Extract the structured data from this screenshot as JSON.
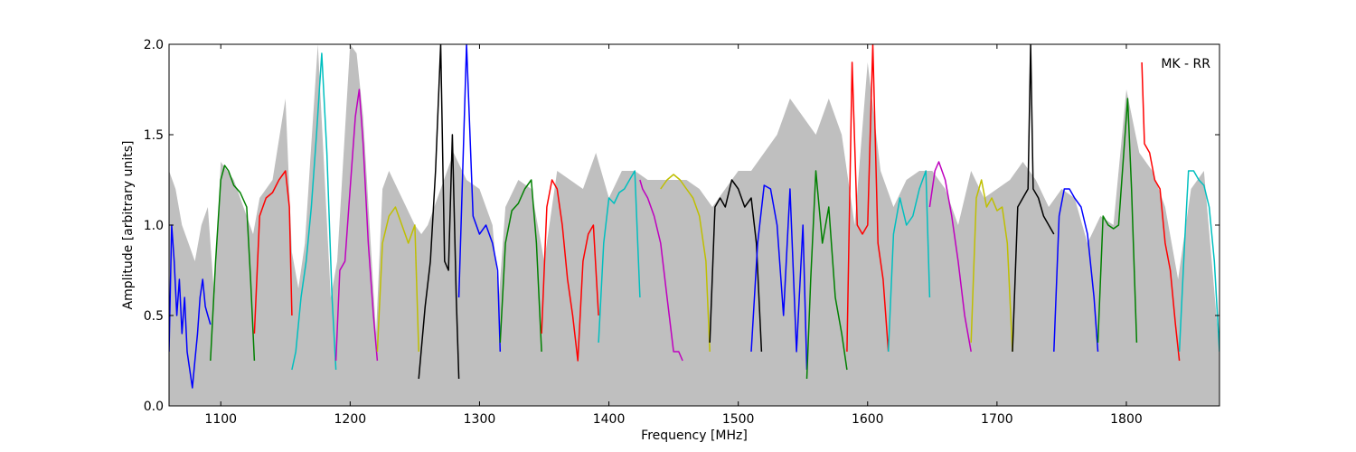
{
  "chart_data": {
    "type": "line",
    "title": "",
    "xlabel": "Frequency [MHz]",
    "ylabel": "Amplitude [arbitrary units]",
    "xlim": [
      1060,
      1872
    ],
    "ylim": [
      0.0,
      2.0
    ],
    "xticks": [
      1100,
      1200,
      1300,
      1400,
      1500,
      1600,
      1700,
      1800
    ],
    "xtick_labels": [
      "1100",
      "1200",
      "1300",
      "1400",
      "1500",
      "1600",
      "1700",
      "1800"
    ],
    "yticks": [
      0.0,
      0.5,
      1.0,
      1.5,
      2.0
    ],
    "ytick_labels": [
      "0.0",
      "0.5",
      "1.0",
      "1.5",
      "2.0"
    ],
    "grid": false,
    "legend": {
      "text": "MK - RR",
      "placement": "top-right"
    },
    "band_envelope": {
      "color": "#bfbfbf",
      "x": [
        1060,
        1065,
        1070,
        1075,
        1080,
        1085,
        1090,
        1095,
        1100,
        1110,
        1125,
        1130,
        1140,
        1150,
        1155,
        1160,
        1165,
        1170,
        1175,
        1185,
        1190,
        1200,
        1205,
        1210,
        1220,
        1225,
        1230,
        1240,
        1250,
        1255,
        1260,
        1270,
        1280,
        1290,
        1300,
        1310,
        1315,
        1320,
        1330,
        1340,
        1350,
        1360,
        1370,
        1380,
        1390,
        1400,
        1410,
        1420,
        1430,
        1440,
        1450,
        1460,
        1470,
        1480,
        1490,
        1500,
        1510,
        1520,
        1530,
        1540,
        1550,
        1560,
        1570,
        1580,
        1590,
        1600,
        1610,
        1620,
        1630,
        1640,
        1650,
        1660,
        1670,
        1680,
        1690,
        1700,
        1710,
        1720,
        1730,
        1740,
        1750,
        1760,
        1770,
        1780,
        1790,
        1800,
        1810,
        1820,
        1830,
        1840,
        1850,
        1860,
        1872
      ],
      "upper": [
        1.3,
        1.2,
        1.0,
        0.9,
        0.8,
        1.0,
        1.1,
        0.6,
        1.35,
        1.25,
        0.95,
        1.15,
        1.25,
        1.7,
        0.85,
        0.65,
        0.9,
        1.45,
        2.0,
        0.6,
        0.8,
        2.0,
        1.95,
        1.6,
        0.4,
        1.2,
        1.3,
        1.15,
        1.0,
        0.95,
        1.0,
        1.2,
        1.4,
        1.25,
        1.2,
        1.0,
        0.6,
        1.1,
        1.25,
        1.2,
        0.8,
        1.3,
        1.25,
        1.2,
        1.4,
        1.15,
        1.3,
        1.3,
        1.25,
        1.25,
        1.25,
        1.25,
        1.2,
        1.1,
        1.2,
        1.3,
        1.3,
        1.4,
        1.5,
        1.7,
        1.6,
        1.5,
        1.7,
        1.5,
        1.0,
        1.9,
        1.3,
        1.1,
        1.25,
        1.3,
        1.3,
        1.2,
        1.0,
        1.3,
        1.15,
        1.2,
        1.25,
        1.35,
        1.25,
        1.1,
        1.2,
        1.15,
        0.9,
        1.05,
        1.0,
        1.75,
        1.4,
        1.3,
        1.1,
        0.7,
        1.2,
        1.3,
        0.3
      ]
    },
    "series": [
      {
        "color": "#0000ff",
        "x": [
          1060,
          1062,
          1064,
          1066,
          1068,
          1070,
          1072,
          1074,
          1076,
          1078,
          1080,
          1082,
          1084,
          1086,
          1088,
          1090,
          1092
        ],
        "y": [
          0.3,
          1.0,
          0.8,
          0.5,
          0.7,
          0.4,
          0.6,
          0.3,
          0.2,
          0.1,
          0.25,
          0.4,
          0.6,
          0.7,
          0.55,
          0.5,
          0.45
        ]
      },
      {
        "color": "#008000",
        "x": [
          1092,
          1096,
          1100,
          1103,
          1106,
          1110,
          1115,
          1120,
          1123,
          1126
        ],
        "y": [
          0.25,
          0.8,
          1.25,
          1.33,
          1.3,
          1.22,
          1.18,
          1.1,
          0.7,
          0.25
        ]
      },
      {
        "color": "#ff0000",
        "x": [
          1126,
          1130,
          1135,
          1140,
          1145,
          1150,
          1153,
          1155
        ],
        "y": [
          0.4,
          1.05,
          1.15,
          1.18,
          1.25,
          1.3,
          1.1,
          0.5
        ]
      },
      {
        "color": "#00bfbf",
        "x": [
          1155,
          1158,
          1162,
          1166,
          1170,
          1174,
          1178,
          1182,
          1186,
          1189
        ],
        "y": [
          0.2,
          0.3,
          0.6,
          0.8,
          1.1,
          1.5,
          1.95,
          1.4,
          0.6,
          0.2
        ]
      },
      {
        "color": "#bf00bf",
        "x": [
          1189,
          1192,
          1196,
          1200,
          1204,
          1207,
          1210,
          1214,
          1218,
          1221
        ],
        "y": [
          0.25,
          0.75,
          0.8,
          1.2,
          1.6,
          1.75,
          1.45,
          0.9,
          0.5,
          0.25
        ]
      },
      {
        "color": "#bfbf00",
        "x": [
          1221,
          1225,
          1230,
          1235,
          1240,
          1245,
          1250,
          1253
        ],
        "y": [
          0.3,
          0.9,
          1.05,
          1.1,
          1.0,
          0.9,
          1.0,
          0.3
        ]
      },
      {
        "color": "#000000",
        "x": [
          1253,
          1258,
          1262,
          1266,
          1270,
          1273,
          1276,
          1279,
          1282,
          1284
        ],
        "y": [
          0.15,
          0.55,
          0.8,
          1.3,
          2.0,
          0.8,
          0.75,
          1.5,
          0.6,
          0.15
        ]
      },
      {
        "color": "#0000ff",
        "x": [
          1284,
          1290,
          1295,
          1300,
          1305,
          1310,
          1314,
          1316
        ],
        "y": [
          0.6,
          2.0,
          1.05,
          0.95,
          1.0,
          0.9,
          0.75,
          0.3
        ]
      },
      {
        "color": "#008000",
        "x": [
          1316,
          1320,
          1325,
          1330,
          1335,
          1340,
          1344,
          1348
        ],
        "y": [
          0.35,
          0.9,
          1.08,
          1.12,
          1.2,
          1.25,
          0.9,
          0.3
        ]
      },
      {
        "color": "#ff0000",
        "x": [
          1348,
          1352,
          1356,
          1360,
          1364,
          1368,
          1372,
          1376,
          1380,
          1384,
          1388,
          1392
        ],
        "y": [
          0.4,
          1.1,
          1.25,
          1.2,
          1.0,
          0.7,
          0.5,
          0.25,
          0.8,
          0.95,
          1.0,
          0.5
        ]
      },
      {
        "color": "#00bfbf",
        "x": [
          1392,
          1396,
          1400,
          1404,
          1408,
          1412,
          1416,
          1420,
          1424
        ],
        "y": [
          0.35,
          0.9,
          1.15,
          1.12,
          1.18,
          1.2,
          1.25,
          1.3,
          0.6
        ]
      },
      {
        "color": "#bf00bf",
        "x": [
          1424,
          1426,
          1430,
          1435,
          1440,
          1445,
          1450,
          1454,
          1457
        ],
        "y": [
          1.25,
          1.2,
          1.15,
          1.05,
          0.9,
          0.6,
          0.3,
          0.3,
          0.25
        ]
      },
      {
        "color": "#bfbf00",
        "x": [
          1440,
          1445,
          1450,
          1455,
          1460,
          1465,
          1470,
          1475,
          1478
        ],
        "y": [
          1.2,
          1.25,
          1.28,
          1.25,
          1.2,
          1.15,
          1.05,
          0.8,
          0.3
        ]
      },
      {
        "color": "#000000",
        "x": [
          1478,
          1482,
          1486,
          1490,
          1495,
          1500,
          1505,
          1510,
          1514,
          1518
        ],
        "y": [
          0.35,
          1.1,
          1.15,
          1.1,
          1.25,
          1.2,
          1.1,
          1.15,
          0.9,
          0.3
        ]
      },
      {
        "color": "#0000ff",
        "x": [
          1510,
          1515,
          1520,
          1525,
          1530,
          1535,
          1540,
          1545,
          1550,
          1553
        ],
        "y": [
          0.3,
          0.9,
          1.22,
          1.2,
          1.0,
          0.5,
          1.2,
          0.3,
          1.0,
          0.2
        ]
      },
      {
        "color": "#008000",
        "x": [
          1553,
          1556,
          1560,
          1565,
          1570,
          1575,
          1580,
          1584
        ],
        "y": [
          0.15,
          0.7,
          1.3,
          0.9,
          1.1,
          0.6,
          0.4,
          0.2
        ]
      },
      {
        "color": "#ff0000",
        "x": [
          1584,
          1588,
          1592,
          1596,
          1600,
          1604,
          1608,
          1612,
          1616
        ],
        "y": [
          0.3,
          1.9,
          1.0,
          0.95,
          1.0,
          2.0,
          0.9,
          0.7,
          0.3
        ]
      },
      {
        "color": "#00bfbf",
        "x": [
          1616,
          1620,
          1625,
          1630,
          1635,
          1640,
          1645,
          1648
        ],
        "y": [
          0.3,
          0.95,
          1.15,
          1.0,
          1.05,
          1.2,
          1.3,
          0.6
        ]
      },
      {
        "color": "#bf00bf",
        "x": [
          1648,
          1652,
          1655,
          1660,
          1665,
          1670,
          1675,
          1680
        ],
        "y": [
          1.1,
          1.3,
          1.35,
          1.25,
          1.05,
          0.8,
          0.5,
          0.3
        ]
      },
      {
        "color": "#bfbf00",
        "x": [
          1680,
          1684,
          1688,
          1692,
          1696,
          1700,
          1704,
          1708,
          1712
        ],
        "y": [
          0.35,
          1.15,
          1.25,
          1.1,
          1.15,
          1.08,
          1.1,
          0.9,
          0.3
        ]
      },
      {
        "color": "#000000",
        "x": [
          1712,
          1716,
          1720,
          1724,
          1726,
          1728,
          1732,
          1736,
          1740,
          1744
        ],
        "y": [
          0.3,
          1.1,
          1.15,
          1.2,
          2.0,
          1.2,
          1.15,
          1.05,
          1.0,
          0.95
        ]
      },
      {
        "color": "#0000ff",
        "x": [
          1744,
          1748,
          1752,
          1756,
          1760,
          1765,
          1770,
          1775,
          1778
        ],
        "y": [
          0.3,
          1.05,
          1.2,
          1.2,
          1.15,
          1.1,
          0.95,
          0.6,
          0.3
        ]
      },
      {
        "color": "#008000",
        "x": [
          1778,
          1782,
          1786,
          1790,
          1794,
          1798,
          1801,
          1804,
          1808
        ],
        "y": [
          0.35,
          1.05,
          1.0,
          0.98,
          1.0,
          1.4,
          1.7,
          1.2,
          0.35
        ]
      },
      {
        "color": "#ff0000",
        "x": [
          1812,
          1814,
          1818,
          1822,
          1826,
          1830,
          1834,
          1838,
          1841
        ],
        "y": [
          1.9,
          1.45,
          1.4,
          1.25,
          1.2,
          0.9,
          0.75,
          0.45,
          0.25
        ]
      },
      {
        "color": "#00bfbf",
        "x": [
          1841,
          1845,
          1848,
          1852,
          1856,
          1860,
          1864,
          1868,
          1872
        ],
        "y": [
          0.3,
          0.9,
          1.3,
          1.3,
          1.25,
          1.22,
          1.1,
          0.8,
          0.3
        ]
      }
    ]
  }
}
